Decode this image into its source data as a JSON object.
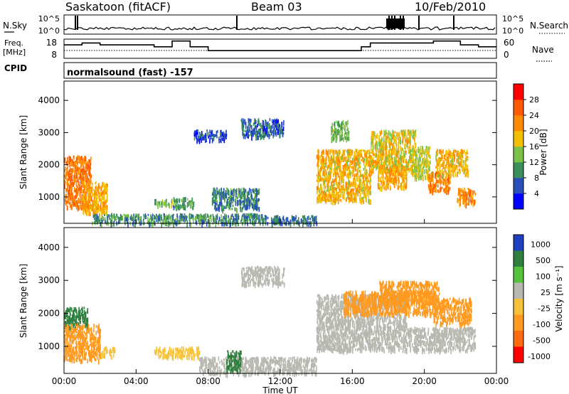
{
  "header": {
    "station": "Saskatoon (fitACF)",
    "beam": "Beam 03",
    "date": "10/Feb/2010",
    "cpid_label": "CPID",
    "cpid_text": "normalsound (fast) -157"
  },
  "noise_panel": {
    "left_label": "N.Sky",
    "right_label": "N.Search",
    "left_ticks": [
      "10^5",
      "10^0"
    ],
    "right_ticks": [
      "10^5",
      "10^0"
    ]
  },
  "freq_panel": {
    "left_label_line1": "Freq.",
    "left_label_line2": "[MHz]",
    "right_label": "Nave",
    "left_ticks": [
      "18",
      "8"
    ],
    "right_ticks": [
      "60",
      "0"
    ]
  },
  "power_panel": {
    "ylabel": "Slant Range [km]",
    "yticks": [
      "4000",
      "3000",
      "2000",
      "1000"
    ],
    "colorbar_label": "Power [dB]",
    "colorbar_ticks": [
      "28",
      "24",
      "20",
      "16",
      "12",
      "8",
      "4"
    ],
    "colors": [
      "#0000ff",
      "#2a4fb8",
      "#3b8f5a",
      "#7cc24a",
      "#f2c000",
      "#ff8a00",
      "#ff5a00",
      "#ff0000"
    ]
  },
  "velocity_panel": {
    "ylabel": "Slant Range [km]",
    "yticks": [
      "4000",
      "3000",
      "2000",
      "1000"
    ],
    "colorbar_label": "Velocity [m s⁻¹]",
    "colorbar_ticks": [
      "1000",
      "500",
      "100",
      "25",
      "-25",
      "-100",
      "-500",
      "-1000"
    ],
    "colors": [
      "#1f3fbf",
      "#2f7f3f",
      "#55c43a",
      "#b8b8b0",
      "#f7c23a",
      "#ff9a1f",
      "#ff6a10",
      "#ff0000"
    ]
  },
  "x_axis": {
    "ticks": [
      "00:00",
      "04:00",
      "08:00",
      "12:00",
      "16:00",
      "20:00",
      "00:00"
    ],
    "label": "Time UT"
  },
  "chart_data": [
    {
      "type": "heatmap",
      "title": "Power",
      "xlabel": "Time UT",
      "ylabel": "Slant Range [km]",
      "xlim": [
        "00:00",
        "24:00"
      ],
      "ylim": [
        180,
        4600
      ],
      "colorbar": {
        "label": "Power [dB]",
        "ticks": [
          4,
          8,
          12,
          16,
          20,
          24,
          28
        ]
      },
      "scatter_regions": [
        {
          "t": [
            0.0,
            1.5
          ],
          "r": [
            700,
            2300
          ],
          "v": 26
        },
        {
          "t": [
            1.0,
            2.4
          ],
          "r": [
            500,
            1500
          ],
          "v": 22
        },
        {
          "t": [
            5.0,
            6.0
          ],
          "r": [
            750,
            950
          ],
          "v": 16
        },
        {
          "t": [
            6.0,
            7.2
          ],
          "r": [
            700,
            1000
          ],
          "v": 13
        },
        {
          "t": [
            8.2,
            10.8
          ],
          "r": [
            650,
            1300
          ],
          "v": 11
        },
        {
          "t": [
            9.8,
            12.2
          ],
          "r": [
            2900,
            3450
          ],
          "v": 9
        },
        {
          "t": [
            7.2,
            9.0
          ],
          "r": [
            2800,
            3100
          ],
          "v": 7
        },
        {
          "t": [
            14.0,
            17.0
          ],
          "r": [
            900,
            2500
          ],
          "v": 21
        },
        {
          "t": [
            14.8,
            15.8
          ],
          "r": [
            2800,
            3400
          ],
          "v": 15
        },
        {
          "t": [
            17.0,
            19.5
          ],
          "r": [
            1800,
            3100
          ],
          "v": 20
        },
        {
          "t": [
            17.4,
            19.0
          ],
          "r": [
            1300,
            2000
          ],
          "v": 22
        },
        {
          "t": [
            19.3,
            20.3
          ],
          "r": [
            1600,
            2600
          ],
          "v": 18
        },
        {
          "t": [
            20.2,
            21.4
          ],
          "r": [
            1200,
            1800
          ],
          "v": 25
        },
        {
          "t": [
            20.6,
            22.4
          ],
          "r": [
            1700,
            2500
          ],
          "v": 21
        },
        {
          "t": [
            21.8,
            22.8
          ],
          "r": [
            800,
            1300
          ],
          "v": 24
        },
        {
          "t": [
            1.5,
            11.0
          ],
          "r": [
            200,
            500
          ],
          "v": 12
        },
        {
          "t": [
            11.0,
            14.0
          ],
          "r": [
            200,
            450
          ],
          "v": 10
        }
      ]
    },
    {
      "type": "heatmap",
      "title": "Velocity",
      "xlabel": "Time UT",
      "ylabel": "Slant Range [km]",
      "xlim": [
        "00:00",
        "24:00"
      ],
      "ylim": [
        180,
        4600
      ],
      "colorbar": {
        "label": "Velocity [m s⁻¹]",
        "ticks": [
          -1000,
          -500,
          -100,
          -25,
          25,
          100,
          500,
          1000
        ]
      },
      "scatter_regions": [
        {
          "t": [
            0.0,
            1.3
          ],
          "r": [
            1600,
            2200
          ],
          "v": 120
        },
        {
          "t": [
            0.0,
            2.0
          ],
          "r": [
            600,
            1700
          ],
          "v": -250
        },
        {
          "t": [
            2.0,
            2.8
          ],
          "r": [
            700,
            1000
          ],
          "v": -60
        },
        {
          "t": [
            5.0,
            7.5
          ],
          "r": [
            700,
            1000
          ],
          "v": -60
        },
        {
          "t": [
            7.5,
            14.0
          ],
          "r": [
            200,
            700
          ],
          "v": 10
        },
        {
          "t": [
            9.0,
            9.8
          ],
          "r": [
            300,
            900
          ],
          "v": 150
        },
        {
          "t": [
            9.8,
            12.2
          ],
          "r": [
            2900,
            3450
          ],
          "v": 0
        },
        {
          "t": [
            14.0,
            19.0
          ],
          "r": [
            900,
            2600
          ],
          "v": 0
        },
        {
          "t": [
            15.5,
            20.5
          ],
          "r": [
            2000,
            2700
          ],
          "v": -200
        },
        {
          "t": [
            17.5,
            20.8
          ],
          "r": [
            2300,
            3000
          ],
          "v": -300
        },
        {
          "t": [
            19.0,
            22.8
          ],
          "r": [
            900,
            1600
          ],
          "v": 0
        },
        {
          "t": [
            20.5,
            22.6
          ],
          "r": [
            1700,
            2500
          ],
          "v": -150
        }
      ]
    },
    {
      "type": "line",
      "title": "Freq. / Nave",
      "x": [
        "00:00",
        "01:00",
        "02:00",
        "04:00",
        "05:00",
        "06:00",
        "07:00",
        "08:00",
        "16:30",
        "17:00",
        "18:00",
        "19:00",
        "20:30",
        "22:00",
        "23:00"
      ],
      "series": [
        {
          "name": "Freq.",
          "values": [
            15,
            16,
            15,
            15,
            14,
            17,
            14,
            12,
            14,
            16,
            16,
            16,
            17,
            15,
            14
          ]
        }
      ],
      "ylim": [
        8,
        18
      ]
    }
  ]
}
